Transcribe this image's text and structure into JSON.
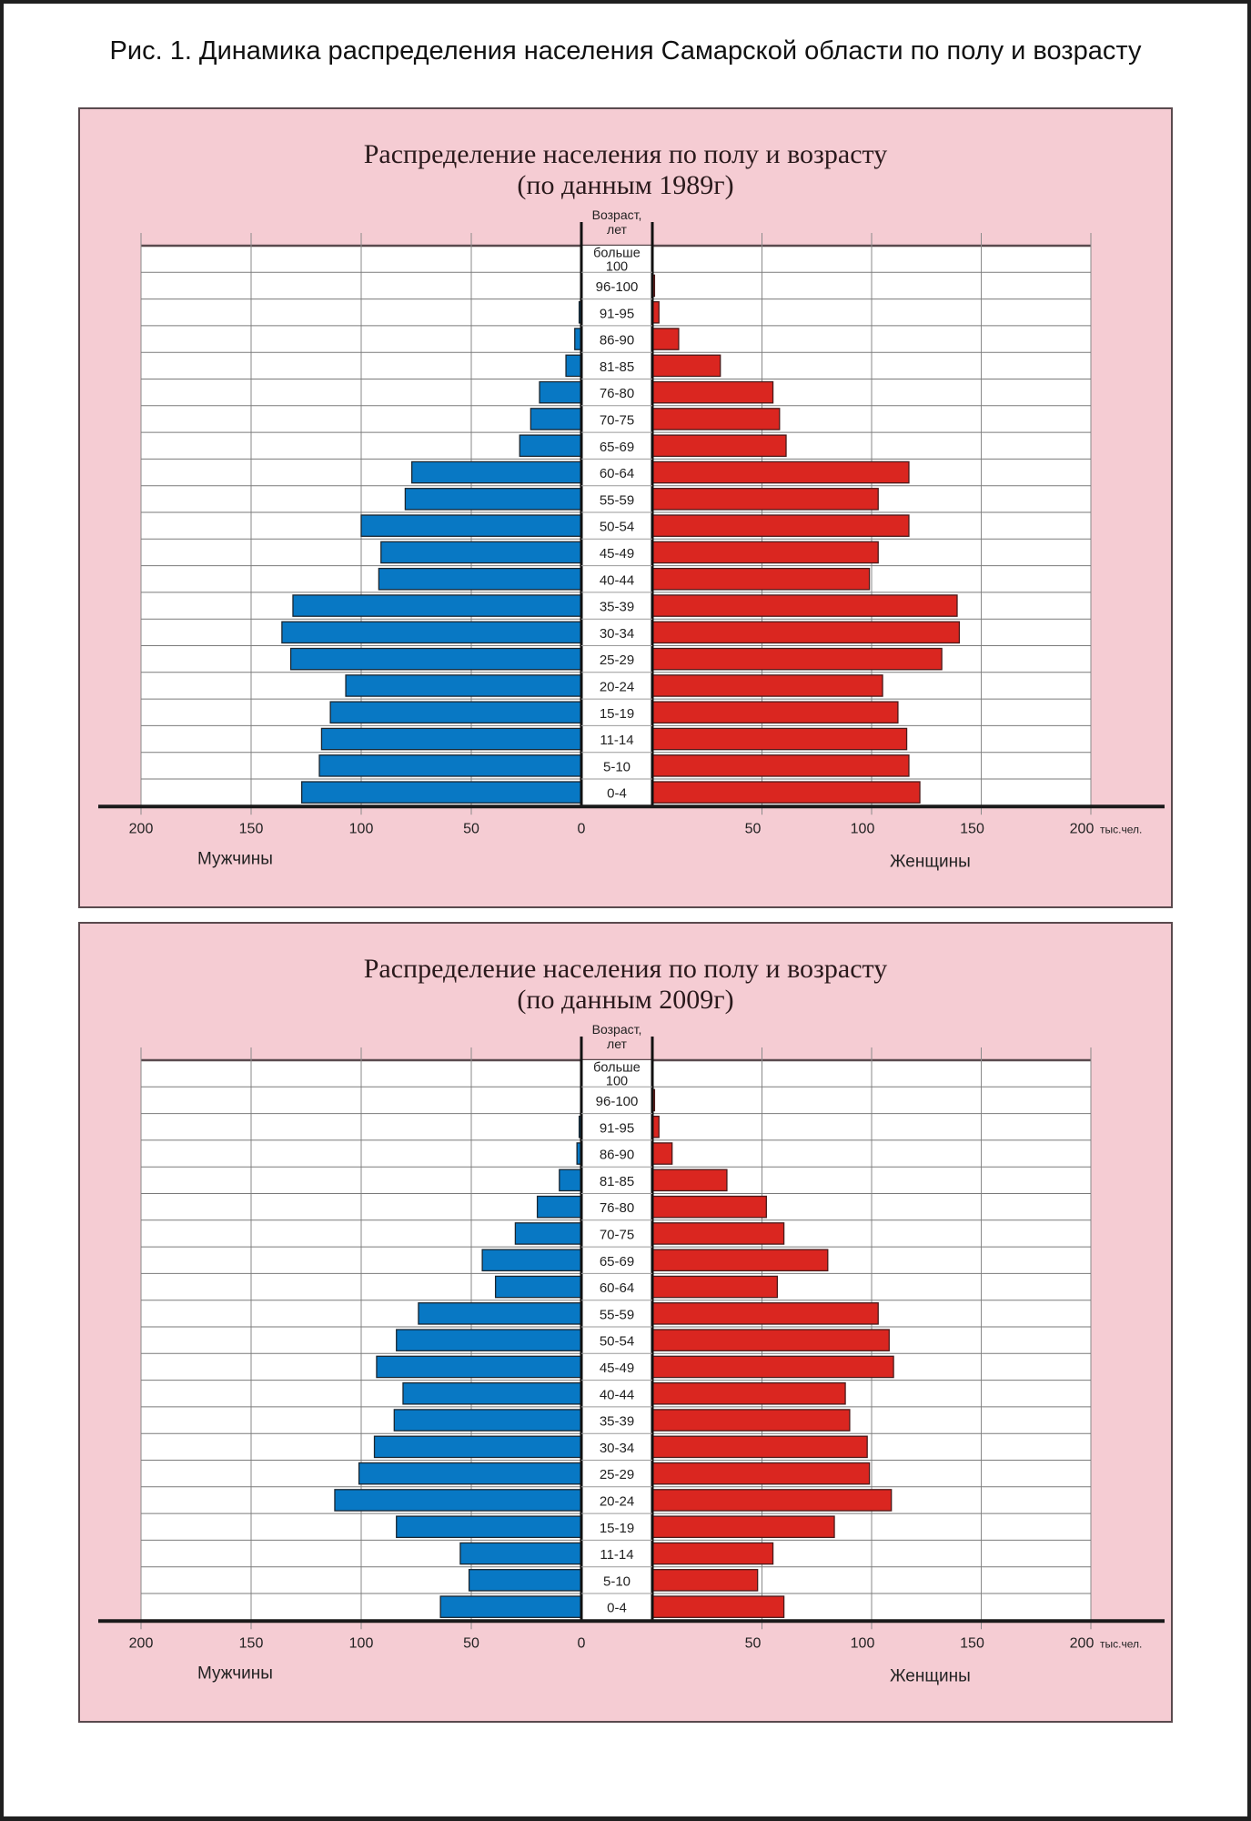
{
  "figure_title": "Рис. 1. Динамика распределения населения Самарской области по полу и возрасту",
  "colors": {
    "male": "#0878c4",
    "female": "#da2620",
    "panel_bg": "#f5ccd3",
    "bar_outline": "#1a2630"
  },
  "chart_data": [
    {
      "type": "bar",
      "orientation": "horizontal",
      "subtype": "population-pyramid",
      "title": "Распределение населения по полу и возрасту",
      "subtitle": "(по данным 1989г)",
      "age_header": "Возраст, лет",
      "categories": [
        "больше 100",
        "96-100",
        "91-95",
        "86-90",
        "81-85",
        "76-80",
        "70-75",
        "65-69",
        "60-64",
        "55-59",
        "50-54",
        "45-49",
        "40-44",
        "35-39",
        "30-34",
        "25-29",
        "20-24",
        "15-19",
        "11-14",
        "5-10",
        "0-4"
      ],
      "series": [
        {
          "name": "Мужчины",
          "side": "left",
          "values": [
            0,
            0,
            1,
            3,
            7,
            19,
            23,
            28,
            77,
            80,
            100,
            91,
            92,
            131,
            136,
            132,
            107,
            114,
            118,
            119,
            127
          ]
        },
        {
          "name": "Женщины",
          "side": "right",
          "values": [
            0,
            1,
            3,
            12,
            31,
            55,
            58,
            61,
            117,
            103,
            117,
            103,
            99,
            139,
            140,
            132,
            105,
            112,
            116,
            117,
            122
          ]
        }
      ],
      "xlim": [
        0,
        200
      ],
      "xticks_left": [
        "200",
        "150",
        "100",
        "50",
        "0"
      ],
      "xticks_right": [
        "50",
        "100",
        "150",
        "200"
      ],
      "xunit": "тыс.чел.",
      "left_label": "Мужчины",
      "right_label": "Женщины",
      "grid": true
    },
    {
      "type": "bar",
      "orientation": "horizontal",
      "subtype": "population-pyramid",
      "title": "Распределение населения по полу и возрасту",
      "subtitle": "(по данным  2009г)",
      "age_header": "Возраст, лет",
      "categories": [
        "больше 100",
        "96-100",
        "91-95",
        "86-90",
        "81-85",
        "76-80",
        "70-75",
        "65-69",
        "60-64",
        "55-59",
        "50-54",
        "45-49",
        "40-44",
        "35-39",
        "30-34",
        "25-29",
        "20-24",
        "15-19",
        "11-14",
        "5-10",
        "0-4"
      ],
      "series": [
        {
          "name": "Мужчины",
          "side": "left",
          "values": [
            0,
            0,
            1,
            2,
            10,
            20,
            30,
            45,
            39,
            74,
            84,
            93,
            81,
            85,
            94,
            101,
            112,
            84,
            55,
            51,
            64
          ]
        },
        {
          "name": "Женщины",
          "side": "right",
          "values": [
            0,
            1,
            3,
            9,
            34,
            52,
            60,
            80,
            57,
            103,
            108,
            110,
            88,
            90,
            98,
            99,
            109,
            83,
            55,
            48,
            60
          ]
        }
      ],
      "xlim": [
        0,
        200
      ],
      "xticks_left": [
        "200",
        "150",
        "100",
        "50",
        "0"
      ],
      "xticks_right": [
        "50",
        "100",
        "150",
        "200"
      ],
      "xunit": "тыс.чел.",
      "left_label": "Мужчины",
      "right_label": "Женщины",
      "grid": true
    }
  ]
}
